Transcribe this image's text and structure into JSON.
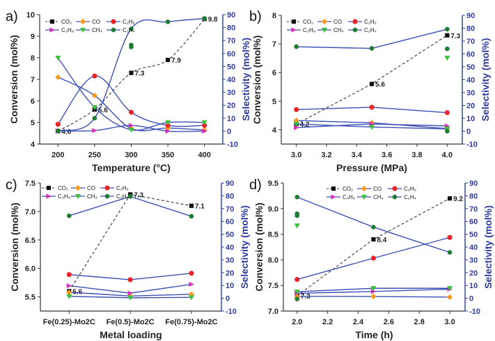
{
  "colors": {
    "CO2": "#111111",
    "CO": "#f39a1e",
    "C2H6": "#e8262a",
    "C3H8": "#d433b8",
    "CH4": "#3cc23c",
    "C2H4": "#1f7a32",
    "selectivity_line": "#3b4fb5",
    "right_axis": "#2c3a9c"
  },
  "chart_data": [
    {
      "panel_label": "a)",
      "type": "line",
      "smooth": true,
      "xlabel": "Temperature (°C)",
      "ylabel": "Conversion (mol%)",
      "y2label": "Selectivity (mol%)",
      "xlim": [
        175,
        425
      ],
      "ylim": [
        4,
        10
      ],
      "y2lim": [
        -10,
        90
      ],
      "xticks": [
        200,
        250,
        300,
        350,
        400
      ],
      "yticks": [
        4,
        5,
        6,
        7,
        8,
        9,
        10
      ],
      "y2ticks": [
        -10,
        0,
        10,
        20,
        30,
        40,
        50,
        60,
        70,
        80,
        90
      ],
      "x": [
        200,
        250,
        300,
        350,
        400
      ],
      "series": [
        {
          "name": "CO₂",
          "key": "CO2",
          "axis": "left",
          "values": [
            4.6,
            5.6,
            7.3,
            7.9,
            9.8
          ],
          "labels": [
            "4.6",
            "5.6",
            "7.3",
            "7.9",
            "9.8"
          ]
        },
        {
          "name": "CO",
          "key": "CO",
          "axis": "right",
          "values": [
            41.7,
            27.5,
            2,
            2.4,
            0.8
          ]
        },
        {
          "name": "C₂H₆",
          "key": "C2H6",
          "axis": "right",
          "values": [
            5.3,
            42.6,
            14.6,
            4.4,
            4.4
          ]
        },
        {
          "name": "C₃H₈",
          "key": "C3H8",
          "axis": "right",
          "values": [
            0.2,
            0.4,
            4.4,
            0,
            0
          ]
        },
        {
          "name": "CH₄",
          "key": "CH4",
          "axis": "right",
          "values": [
            56.6,
            18.4,
            1,
            6.7,
            6.7
          ]
        },
        {
          "name": "C₂H₄",
          "key": "C2H4",
          "axis": "right",
          "values": [
            0.2,
            10,
            79,
            84.4,
            87
          ]
        }
      ],
      "extra_points": [
        {
          "key": "C2H4",
          "x": 300,
          "y": 65
        },
        {
          "key": "C2H4",
          "x": 300,
          "y": 66.5
        }
      ]
    },
    {
      "panel_label": "b)",
      "type": "line",
      "smooth": false,
      "xlabel": "Pressure (MPa)",
      "ylabel": "Conversion (mol%)",
      "y2label": "Selectivity (mol%)",
      "xlim": [
        2.9,
        4.1
      ],
      "ylim": [
        3.5,
        8
      ],
      "y2lim": [
        -10,
        90
      ],
      "xticks": [
        3.0,
        3.2,
        3.4,
        3.6,
        3.8,
        4.0
      ],
      "yticks": [
        4,
        5,
        6,
        7,
        8
      ],
      "y2ticks": [
        -10,
        0,
        10,
        20,
        30,
        40,
        50,
        60,
        70,
        80,
        90
      ],
      "x": [
        3.0,
        3.5,
        4.0
      ],
      "series": [
        {
          "name": "CO₂",
          "key": "CO2",
          "axis": "left",
          "values": [
            4.2,
            5.6,
            7.3
          ],
          "labels": [
            "4.2",
            "5.6",
            "7.3"
          ]
        },
        {
          "name": "CO",
          "key": "CO",
          "axis": "right",
          "values": [
            8.3,
            6.5,
            2
          ]
        },
        {
          "name": "C₂H₆",
          "key": "C2H6",
          "axis": "right",
          "values": [
            16.8,
            18.6,
            14.4
          ]
        },
        {
          "name": "C₃H₈",
          "key": "C3H8",
          "axis": "right",
          "values": [
            2.8,
            5.6,
            4.1
          ]
        },
        {
          "name": "CH₄",
          "key": "CH4",
          "axis": "right",
          "values": [
            5.6,
            3.2,
            1.8
          ]
        },
        {
          "name": "C₂H₄",
          "key": "C2H4",
          "axis": "right",
          "values": [
            65.6,
            64.3,
            79.2
          ]
        }
      ],
      "extra_points": [
        {
          "key": "C2H4",
          "x": 4.0,
          "y": 64
        },
        {
          "key": "CH4",
          "x": 4.0,
          "y": 56.9
        },
        {
          "key": "C2H4",
          "x": 4.0,
          "y": 0
        }
      ]
    },
    {
      "panel_label": "c)",
      "type": "line",
      "smooth": false,
      "xlabel": "Metal loading",
      "ylabel": "Conversion (mol%)",
      "y2label": "Selectivity (mol%)",
      "xlim": [
        -0.47,
        2.49
      ],
      "ylim": [
        5.25,
        7.5
      ],
      "y2lim": [
        -10,
        90
      ],
      "categories": [
        "Fe(0.25)-Mo2C",
        "Fe(0.5)-Mo2C",
        "Fe(0.75)-Mo2C"
      ],
      "yticks": [
        5.5,
        6.0,
        6.5,
        7.0,
        7.5
      ],
      "y2ticks": [
        -10,
        0,
        10,
        20,
        30,
        40,
        50,
        60,
        70,
        80,
        90
      ],
      "x": [
        0,
        1,
        2
      ],
      "series": [
        {
          "name": "CO₂",
          "key": "CO2",
          "axis": "left",
          "values": [
            5.6,
            7.3,
            7.1
          ],
          "labels": [
            "5.6",
            "7.3",
            "7.1"
          ]
        },
        {
          "name": "CO",
          "key": "CO",
          "axis": "right",
          "values": [
            4.7,
            1.8,
            3.1
          ]
        },
        {
          "name": "C₂H₆",
          "key": "C2H6",
          "axis": "right",
          "values": [
            18.5,
            14.5,
            19.5
          ]
        },
        {
          "name": "C₃H₈",
          "key": "C3H8",
          "axis": "right",
          "values": [
            9.8,
            4,
            10.9
          ]
        },
        {
          "name": "CH₄",
          "key": "CH4",
          "axis": "right",
          "values": [
            1.5,
            0.4,
            0.7
          ]
        },
        {
          "name": "C₂H₄",
          "key": "C2H4",
          "axis": "right",
          "values": [
            64.4,
            79.5,
            64
          ]
        }
      ],
      "extra_points": []
    },
    {
      "panel_label": "d)",
      "type": "line",
      "smooth": false,
      "xlabel": "Time (h)",
      "ylabel": "Conversion (mol%)",
      "y2label": "Selectivity (mol%)",
      "xlim": [
        1.91,
        3.1
      ],
      "ylim": [
        7.0,
        9.5
      ],
      "y2lim": [
        -10,
        90
      ],
      "xticks": [
        2.0,
        2.2,
        2.4,
        2.6,
        2.8,
        3.0
      ],
      "yticks": [
        7.0,
        7.5,
        8.0,
        8.5,
        9.0,
        9.5
      ],
      "y2ticks": [
        -10,
        0,
        10,
        20,
        30,
        40,
        50,
        60,
        70,
        80,
        90
      ],
      "x": [
        2.0,
        2.5,
        3.0
      ],
      "series": [
        {
          "name": "CO₂",
          "key": "CO2",
          "axis": "left",
          "values": [
            7.3,
            8.4,
            9.2
          ],
          "labels": [
            "7.3",
            "8.4",
            "9.2"
          ]
        },
        {
          "name": "CO",
          "key": "CO",
          "axis": "right",
          "values": [
            1.5,
            1.4,
            0.9
          ]
        },
        {
          "name": "C₂H₆",
          "key": "C2H6",
          "axis": "right",
          "values": [
            14.7,
            31.3,
            47.5
          ]
        },
        {
          "name": "C₃H₈",
          "key": "C3H8",
          "axis": "right",
          "values": [
            3.9,
            5.3,
            7.1
          ]
        },
        {
          "name": "CH₄",
          "key": "CH4",
          "axis": "right",
          "values": [
            5.1,
            7.8,
            7.8
          ]
        },
        {
          "name": "C₂H₄",
          "key": "C2H4",
          "axis": "right",
          "values": [
            79,
            55.6,
            35.8
          ]
        }
      ],
      "extra_points": [
        {
          "key": "C2H4",
          "x": 2.0,
          "y": 64.5
        },
        {
          "key": "C2H4",
          "x": 2.0,
          "y": 66
        },
        {
          "key": "CH4",
          "x": 2.0,
          "y": 56.7
        },
        {
          "key": "C2H4",
          "x": 2.0,
          "y": -0.6
        }
      ]
    }
  ]
}
